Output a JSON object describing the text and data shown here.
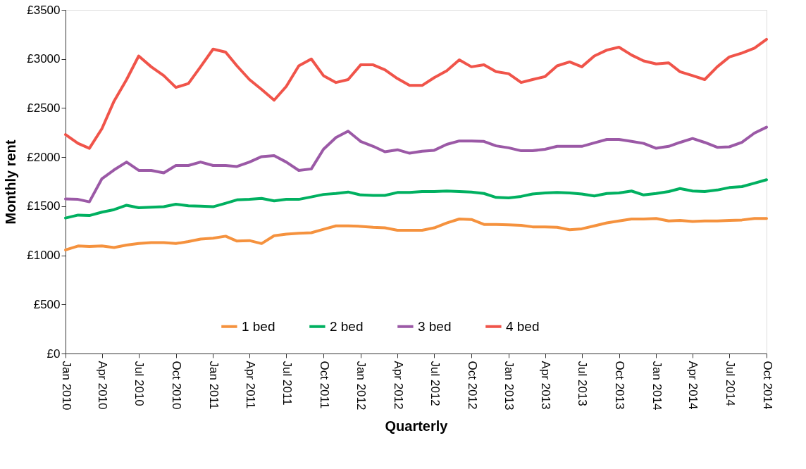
{
  "chart_data": {
    "type": "line",
    "xlabel": "Quarterly",
    "ylabel": "Monthly rent",
    "x": [
      "2010-01",
      "2010-02",
      "2010-03",
      "2010-04",
      "2010-05",
      "2010-06",
      "2010-07",
      "2010-08",
      "2010-09",
      "2010-10",
      "2010-11",
      "2010-12",
      "2011-01",
      "2011-02",
      "2011-03",
      "2011-04",
      "2011-05",
      "2011-06",
      "2011-07",
      "2011-08",
      "2011-09",
      "2011-10",
      "2011-11",
      "2011-12",
      "2012-01",
      "2012-02",
      "2012-03",
      "2012-04",
      "2012-05",
      "2012-06",
      "2012-07",
      "2012-08",
      "2012-09",
      "2012-10",
      "2012-11",
      "2012-12",
      "2013-01",
      "2013-02",
      "2013-03",
      "2013-04",
      "2013-05",
      "2013-06",
      "2013-07",
      "2013-08",
      "2013-09",
      "2013-10",
      "2013-11",
      "2013-12",
      "2014-01",
      "2014-02",
      "2014-03",
      "2014-04",
      "2014-05",
      "2014-06",
      "2014-07",
      "2014-08",
      "2014-09",
      "2014-10"
    ],
    "series": [
      {
        "name": "1 bed",
        "color": "#f5923e",
        "values": [
          1055,
          1095,
          1090,
          1095,
          1080,
          1105,
          1120,
          1130,
          1130,
          1120,
          1140,
          1165,
          1175,
          1195,
          1145,
          1150,
          1120,
          1200,
          1215,
          1225,
          1230,
          1265,
          1300,
          1300,
          1295,
          1285,
          1280,
          1255,
          1255,
          1255,
          1280,
          1330,
          1370,
          1365,
          1315,
          1315,
          1310,
          1305,
          1290,
          1290,
          1285,
          1260,
          1270,
          1300,
          1330,
          1350,
          1370,
          1370,
          1375,
          1350,
          1355,
          1345,
          1350,
          1350,
          1355,
          1360,
          1375,
          1375
        ]
      },
      {
        "name": "2 bed",
        "color": "#00b060",
        "values": [
          1380,
          1410,
          1405,
          1440,
          1465,
          1510,
          1485,
          1490,
          1495,
          1520,
          1505,
          1500,
          1495,
          1530,
          1565,
          1570,
          1580,
          1555,
          1570,
          1570,
          1595,
          1620,
          1630,
          1645,
          1615,
          1610,
          1610,
          1640,
          1640,
          1650,
          1650,
          1655,
          1650,
          1645,
          1630,
          1590,
          1585,
          1600,
          1625,
          1635,
          1640,
          1635,
          1625,
          1605,
          1630,
          1635,
          1655,
          1615,
          1630,
          1650,
          1680,
          1655,
          1650,
          1665,
          1690,
          1700,
          1735,
          1770
        ]
      },
      {
        "name": "3 bed",
        "color": "#9b59a6",
        "values": [
          1575,
          1570,
          1545,
          1780,
          1870,
          1950,
          1865,
          1865,
          1840,
          1915,
          1915,
          1950,
          1915,
          1915,
          1905,
          1950,
          2005,
          2015,
          1950,
          1865,
          1880,
          2080,
          2200,
          2265,
          2160,
          2110,
          2055,
          2075,
          2040,
          2060,
          2070,
          2130,
          2165,
          2165,
          2160,
          2115,
          2095,
          2065,
          2065,
          2080,
          2110,
          2110,
          2110,
          2145,
          2180,
          2180,
          2160,
          2140,
          2090,
          2110,
          2150,
          2190,
          2150,
          2100,
          2105,
          2150,
          2245,
          2305
        ]
      },
      {
        "name": "4 bed",
        "color": "#f0544a",
        "values": [
          2230,
          2140,
          2090,
          2290,
          2570,
          2790,
          3030,
          2920,
          2830,
          2710,
          2750,
          2920,
          3100,
          3070,
          2930,
          2790,
          2690,
          2580,
          2720,
          2930,
          3000,
          2830,
          2760,
          2790,
          2940,
          2940,
          2890,
          2800,
          2730,
          2730,
          2810,
          2880,
          2990,
          2920,
          2940,
          2870,
          2850,
          2760,
          2790,
          2820,
          2930,
          2970,
          2920,
          3030,
          3090,
          3120,
          3040,
          2980,
          2950,
          2960,
          2870,
          2830,
          2790,
          2920,
          3020,
          3060,
          3110,
          3200
        ]
      }
    ],
    "xlim": [
      "2010-01",
      "2014-10"
    ],
    "xticks": [
      {
        "value": "2010-01",
        "label": "Jan 2010"
      },
      {
        "value": "2010-04",
        "label": "Apr 2010"
      },
      {
        "value": "2010-07",
        "label": "Jul 2010"
      },
      {
        "value": "2010-10",
        "label": "Oct 2010"
      },
      {
        "value": "2011-01",
        "label": "Jan 2011"
      },
      {
        "value": "2011-04",
        "label": "Apr 2011"
      },
      {
        "value": "2011-07",
        "label": "Jul 2011"
      },
      {
        "value": "2011-10",
        "label": "Oct 2011"
      },
      {
        "value": "2012-01",
        "label": "Jan 2012"
      },
      {
        "value": "2012-04",
        "label": "Apr 2012"
      },
      {
        "value": "2012-07",
        "label": "Jul 2012"
      },
      {
        "value": "2012-10",
        "label": "Oct 2012"
      },
      {
        "value": "2013-01",
        "label": "Jan 2013"
      },
      {
        "value": "2013-04",
        "label": "Apr 2013"
      },
      {
        "value": "2013-07",
        "label": "Jul 2013"
      },
      {
        "value": "2013-10",
        "label": "Oct 2013"
      },
      {
        "value": "2014-01",
        "label": "Jan 2014"
      },
      {
        "value": "2014-04",
        "label": "Apr 2014"
      },
      {
        "value": "2014-07",
        "label": "Jul 2014"
      },
      {
        "value": "2014-10",
        "label": "Oct 2014"
      }
    ],
    "ylim": [
      0,
      3500
    ],
    "yticks": [
      {
        "value": 0,
        "label": "£0"
      },
      {
        "value": 500,
        "label": "£500"
      },
      {
        "value": 1000,
        "label": "£1000"
      },
      {
        "value": 1500,
        "label": "£1500"
      },
      {
        "value": 2000,
        "label": "£2000"
      },
      {
        "value": 2500,
        "label": "£2500"
      },
      {
        "value": 3000,
        "label": "£3000"
      },
      {
        "value": 3500,
        "label": "£3500"
      }
    ],
    "grid": false,
    "legend": "bottom",
    "marker": "none",
    "line_style": "solid"
  }
}
